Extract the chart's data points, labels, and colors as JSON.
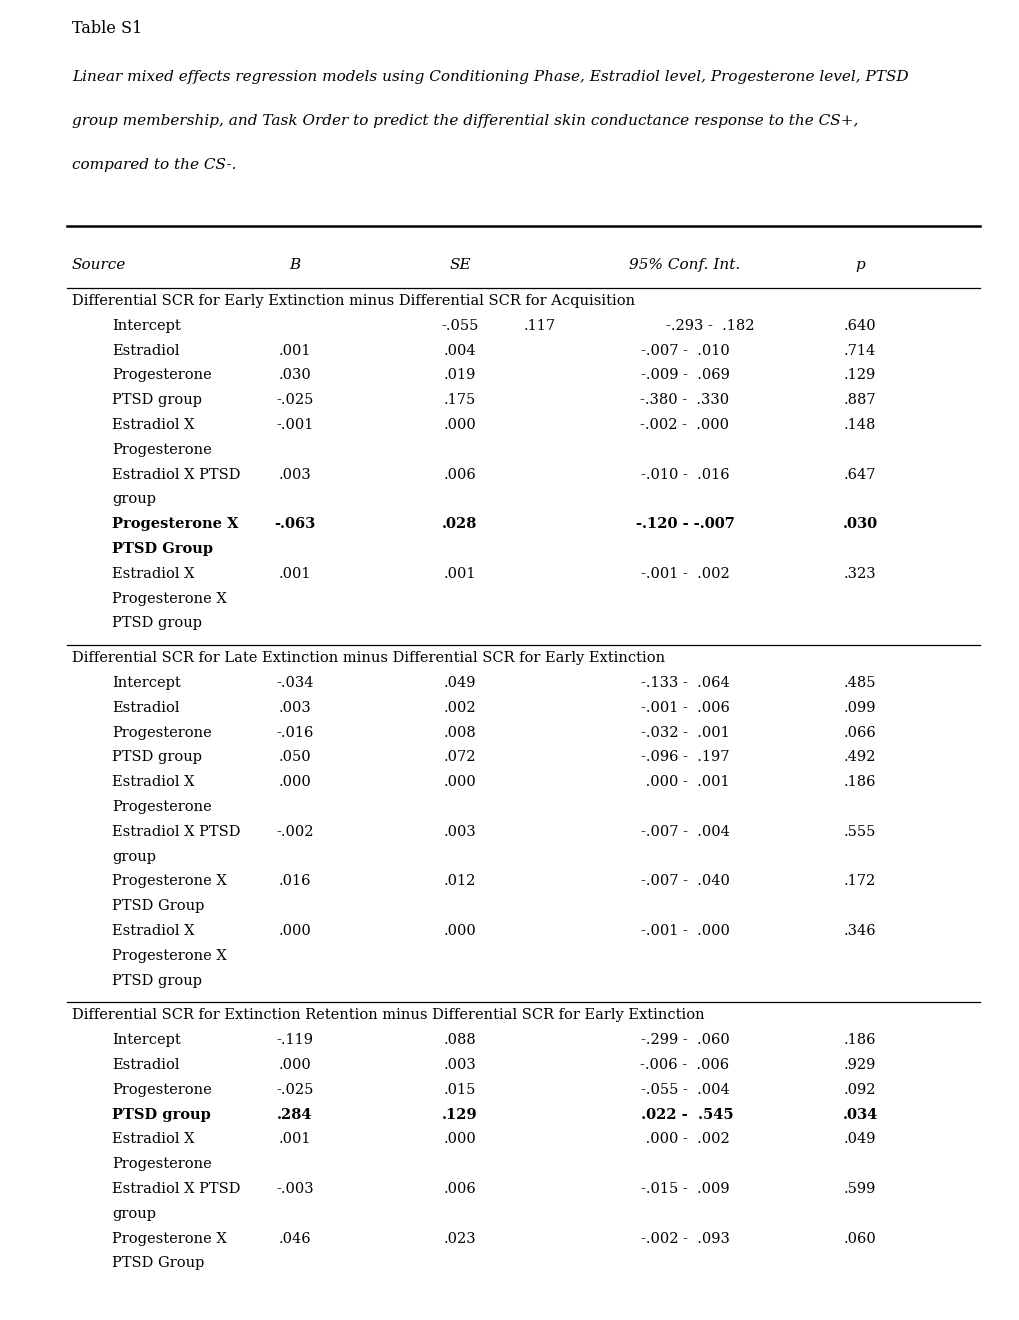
{
  "title_label": "Table S1",
  "caption_line1": "Linear mixed effects regression models using Conditioning Phase, Estradiol level, Progesterone level, PTSD",
  "caption_line2": "group membership, and Task Order to predict the differential skin conductance response to the CS+,",
  "caption_line3": "compared to the CS-.",
  "sections": [
    {
      "section_header": "Differential SCR for Early Extinction minus Differential SCR for Acquisition",
      "rows": [
        {
          "source": "Intercept",
          "source2": "",
          "B": "",
          "SE": "-.055",
          "SE2": ".117",
          "CI": "-.293 -  .182",
          "p": ".640",
          "bold": false,
          "intercept_special": true
        },
        {
          "source": "Estradiol",
          "source2": "",
          "B": ".001",
          "SE": ".004",
          "SE2": "",
          "CI": "-.007 -  .010",
          "p": ".714",
          "bold": false,
          "intercept_special": false
        },
        {
          "source": "Progesterone",
          "source2": "",
          "B": ".030",
          "SE": ".019",
          "SE2": "",
          "CI": "-.009 -  .069",
          "p": ".129",
          "bold": false,
          "intercept_special": false
        },
        {
          "source": "PTSD group",
          "source2": "",
          "B": "-.025",
          "SE": ".175",
          "SE2": "",
          "CI": "-.380 -  .330",
          "p": ".887",
          "bold": false,
          "intercept_special": false
        },
        {
          "source": "Estradiol X",
          "source2": "Progesterone",
          "B": "-.001",
          "SE": ".000",
          "SE2": "",
          "CI": "-.002 -  .000",
          "p": ".148",
          "bold": false,
          "intercept_special": false
        },
        {
          "source": "Estradiol X PTSD",
          "source2": "group",
          "B": ".003",
          "SE": ".006",
          "SE2": "",
          "CI": "-.010 -  .016",
          "p": ".647",
          "bold": false,
          "intercept_special": false
        },
        {
          "source": "Progesterone X",
          "source2": "PTSD Group",
          "B": "-.063",
          "SE": ".028",
          "SE2": "",
          "CI": "-.120 - -.007",
          "p": ".030",
          "bold": true,
          "intercept_special": false
        },
        {
          "source": "Estradiol X",
          "source2": "Progesterone X",
          "B": ".001",
          "SE": ".001",
          "SE2": "",
          "CI": "-.001 -  .002",
          "p": ".323",
          "bold": false,
          "intercept_special": false
        },
        {
          "source": "PTSD group",
          "source2": "",
          "B": "",
          "SE": "",
          "SE2": "",
          "CI": "",
          "p": "",
          "bold": false,
          "intercept_special": false
        }
      ]
    },
    {
      "section_header": "Differential SCR for Late Extinction minus Differential SCR for Early Extinction",
      "rows": [
        {
          "source": "Intercept",
          "source2": "",
          "B": "-.034",
          "SE": ".049",
          "SE2": "",
          "CI": "-.133 -  .064",
          "p": ".485",
          "bold": false,
          "intercept_special": false
        },
        {
          "source": "Estradiol",
          "source2": "",
          "B": ".003",
          "SE": ".002",
          "SE2": "",
          "CI": "-.001 -  .006",
          "p": ".099",
          "bold": false,
          "intercept_special": false
        },
        {
          "source": "Progesterone",
          "source2": "",
          "B": "-.016",
          "SE": ".008",
          "SE2": "",
          "CI": "-.032 -  .001",
          "p": ".066",
          "bold": false,
          "intercept_special": false
        },
        {
          "source": "PTSD group",
          "source2": "",
          "B": ".050",
          "SE": ".072",
          "SE2": "",
          "CI": "-.096 -  .197",
          "p": ".492",
          "bold": false,
          "intercept_special": false
        },
        {
          "source": "Estradiol X",
          "source2": "Progesterone",
          "B": ".000",
          "SE": ".000",
          "SE2": "",
          "CI": " .000 -  .001",
          "p": ".186",
          "bold": false,
          "intercept_special": false
        },
        {
          "source": "Estradiol X PTSD",
          "source2": "group",
          "B": "-.002",
          "SE": ".003",
          "SE2": "",
          "CI": "-.007 -  .004",
          "p": ".555",
          "bold": false,
          "intercept_special": false
        },
        {
          "source": "Progesterone X",
          "source2": "PTSD Group",
          "B": ".016",
          "SE": ".012",
          "SE2": "",
          "CI": "-.007 -  .040",
          "p": ".172",
          "bold": false,
          "intercept_special": false
        },
        {
          "source": "Estradiol X",
          "source2": "Progesterone X",
          "B": ".000",
          "SE": ".000",
          "SE2": "",
          "CI": "-.001 -  .000",
          "p": ".346",
          "bold": false,
          "intercept_special": false
        },
        {
          "source": "PTSD group",
          "source2": "",
          "B": "",
          "SE": "",
          "SE2": "",
          "CI": "",
          "p": "",
          "bold": false,
          "intercept_special": false
        }
      ]
    },
    {
      "section_header": "Differential SCR for Extinction Retention minus Differential SCR for Early Extinction",
      "rows": [
        {
          "source": "Intercept",
          "source2": "",
          "B": "-.119",
          "SE": ".088",
          "SE2": "",
          "CI": "-.299 -  .060",
          "p": ".186",
          "bold": false,
          "intercept_special": false
        },
        {
          "source": "Estradiol",
          "source2": "",
          "B": ".000",
          "SE": ".003",
          "SE2": "",
          "CI": "-.006 -  .006",
          "p": ".929",
          "bold": false,
          "intercept_special": false
        },
        {
          "source": "Progesterone",
          "source2": "",
          "B": "-.025",
          "SE": ".015",
          "SE2": "",
          "CI": "-.055 -  .004",
          "p": ".092",
          "bold": false,
          "intercept_special": false
        },
        {
          "source": "PTSD group",
          "source2": "",
          "B": ".284",
          "SE": ".129",
          "SE2": "",
          "CI": " .022 -  .545",
          "p": ".034",
          "bold": true,
          "intercept_special": false
        },
        {
          "source": "Estradiol X",
          "source2": "Progesterone",
          "B": ".001",
          "SE": ".000",
          "SE2": "",
          "CI": " .000 -  .002",
          "p": ".049",
          "bold": false,
          "intercept_special": false
        },
        {
          "source": "Estradiol X PTSD",
          "source2": "group",
          "B": "-.003",
          "SE": ".006",
          "SE2": "",
          "CI": "-.015 -  .009",
          "p": ".599",
          "bold": false,
          "intercept_special": false
        },
        {
          "source": "Progesterone X",
          "source2": "PTSD Group",
          "B": ".046",
          "SE": ".023",
          "SE2": "",
          "CI": "-.002 -  .093",
          "p": ".060",
          "bold": false,
          "intercept_special": false
        }
      ]
    }
  ]
}
